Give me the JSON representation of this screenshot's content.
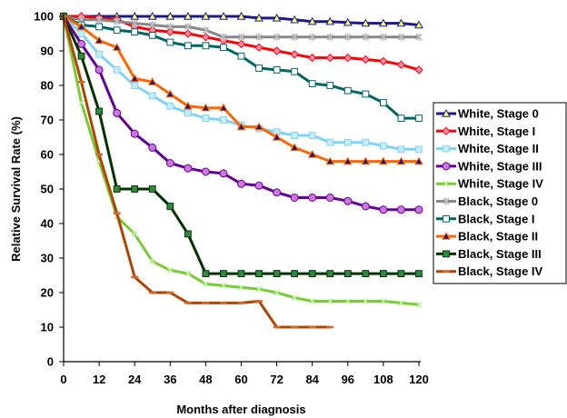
{
  "chart_data": {
    "type": "line",
    "title": "",
    "xlabel": "Months after diagnosis",
    "ylabel": "Relative Survival Rate (%)",
    "xlim": [
      0,
      120
    ],
    "ylim": [
      0,
      100
    ],
    "x_ticks": [
      0,
      12,
      24,
      36,
      48,
      60,
      72,
      84,
      96,
      108,
      120
    ],
    "y_ticks": [
      0,
      10,
      20,
      30,
      40,
      50,
      60,
      70,
      80,
      90,
      100
    ],
    "grid": false,
    "legend_position": "right",
    "x": [
      0,
      6,
      12,
      18,
      24,
      30,
      36,
      42,
      48,
      54,
      60,
      66,
      72,
      78,
      84,
      90,
      96,
      102,
      108,
      114,
      120
    ],
    "series": [
      {
        "name": "White, Stage 0",
        "color": "#1a1a8c",
        "fill": "#ffff66",
        "marker": "triangle",
        "values": [
          100,
          100,
          100,
          100,
          100,
          100,
          100,
          100,
          100,
          100,
          100,
          99.5,
          99.5,
          99,
          98.5,
          98.5,
          98.2,
          98,
          98,
          98,
          97.5
        ]
      },
      {
        "name": "White, Stage I",
        "color": "#ff0000",
        "fill": "#ff8ab4",
        "marker": "diamond",
        "values": [
          100,
          100,
          99.5,
          99,
          97,
          96,
          95.5,
          95,
          94,
          93,
          92,
          91,
          90,
          89,
          88,
          88,
          88,
          87.5,
          87,
          86,
          84.5
        ]
      },
      {
        "name": "White, Stage II",
        "color": "#7fd3f7",
        "fill": "#c7ecfb",
        "marker": "square",
        "values": [
          100,
          95,
          89,
          84.5,
          80,
          77,
          74,
          72,
          70.5,
          70,
          68.5,
          67.5,
          66.5,
          65.5,
          65.5,
          63.5,
          63.5,
          63.5,
          62.5,
          61.5,
          61.5
        ]
      },
      {
        "name": "White, Stage III",
        "color": "#660099",
        "fill": "#cc77dd",
        "marker": "circle",
        "values": [
          100,
          92,
          84.5,
          72,
          66,
          62,
          57.5,
          56,
          55,
          54.5,
          51.5,
          51,
          49,
          47.5,
          47.5,
          47.5,
          46.5,
          45,
          44,
          44,
          44
        ]
      },
      {
        "name": "White, Stage IV",
        "color": "#77cc33",
        "fill": "#bbee99",
        "marker": "x",
        "values": [
          100,
          75,
          58,
          42,
          37,
          29,
          26.5,
          25.5,
          22.5,
          22,
          21.5,
          21,
          20,
          18.5,
          17.5,
          17.5,
          17.5,
          17.5,
          17.5,
          17,
          16.5
        ]
      },
      {
        "name": "Black, Stage 0",
        "color": "#888888",
        "fill": "#bbbbbb",
        "marker": "star",
        "values": [
          100,
          99,
          99,
          98.5,
          98,
          97.5,
          97,
          97,
          96,
          94,
          94,
          94,
          94,
          94,
          94,
          94,
          94,
          94,
          94,
          94,
          94
        ]
      },
      {
        "name": "Black, Stage I",
        "color": "#006666",
        "fill": "#ffffff",
        "marker": "square",
        "values": [
          100,
          97.5,
          97,
          96,
          95.5,
          94.5,
          92.5,
          91.5,
          91.5,
          91,
          88.5,
          85,
          84.5,
          84,
          80.5,
          80,
          78.5,
          77.5,
          75,
          70.5,
          70.5
        ]
      },
      {
        "name": "Black, Stage II",
        "color": "#ff6600",
        "fill": "#2a1a6e",
        "marker": "triangle",
        "values": [
          100,
          97,
          93,
          91,
          82,
          81,
          77.5,
          74,
          73.5,
          73.5,
          68,
          68,
          65,
          62,
          60,
          58,
          58,
          58,
          58,
          58,
          58
        ]
      },
      {
        "name": "Black, Stage III",
        "color": "#003300",
        "fill": "#2e8b3e",
        "marker": "square",
        "values": [
          100,
          88.5,
          72.5,
          50,
          50,
          50,
          45,
          37,
          25.5,
          25.5,
          25.5,
          25.5,
          25.5,
          25.5,
          25.5,
          25.5,
          25.5,
          25.5,
          25.5,
          25.5,
          25.5
        ]
      },
      {
        "name": "Black, Stage IV",
        "color": "#b34400",
        "fill": "#d26a2a",
        "marker": "dash",
        "values": [
          100,
          81,
          60,
          43,
          24.5,
          20,
          20,
          17,
          17,
          17,
          17,
          17.5,
          10,
          10,
          10,
          10,
          null,
          null,
          null,
          null,
          null
        ]
      }
    ]
  }
}
